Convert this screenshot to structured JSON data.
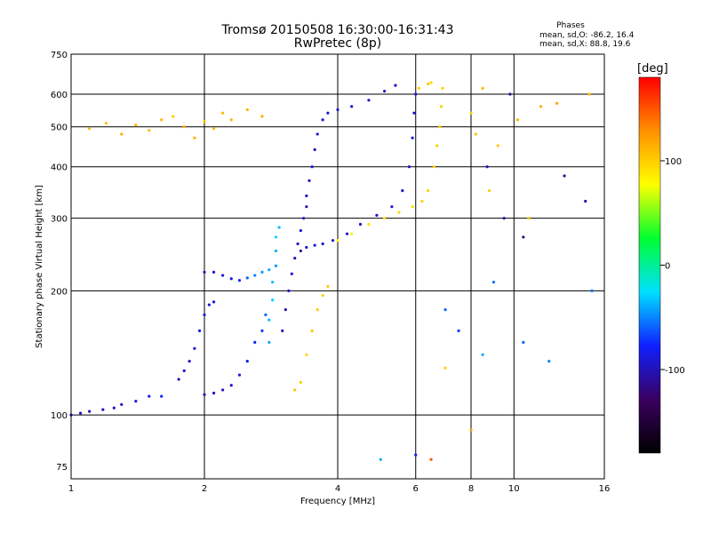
{
  "title": "Tromsø 20150508 16:30:00-16:31:43",
  "subtitle": "RwPretec (8p)",
  "phases": {
    "title": "Phases",
    "o_line": "mean, sd,O: -86.2, 16.4",
    "x_line": "mean, sd,X:  88.8, 19.6"
  },
  "colorbar": {
    "unit": "[deg]",
    "tick_labels": [
      "100",
      "0",
      "-100"
    ],
    "ticks": [
      100,
      0,
      -100
    ],
    "range": [
      -180,
      180
    ],
    "colors": [
      "#000000",
      "#3a0060",
      "#1020ff",
      "#00e0ff",
      "#00ff30",
      "#ffff00",
      "#ff9000",
      "#ff0000"
    ]
  },
  "chart_data": {
    "type": "scatter",
    "xlabel": "Frequency [MHz]",
    "ylabel": "Stationary phase Virtual Height [km]",
    "x_scale": "log",
    "y_scale": "log",
    "xlim": [
      1,
      16
    ],
    "ylim": [
      70,
      750
    ],
    "x_ticks": [
      1,
      2,
      4,
      6,
      8,
      10,
      16
    ],
    "x_tick_labels": [
      "1",
      "2",
      "4",
      "6",
      "8",
      "10",
      "16"
    ],
    "y_ticks": [
      75,
      100,
      200,
      300,
      400,
      500,
      600,
      750
    ],
    "y_tick_labels": [
      "75",
      "100",
      "200",
      "300",
      "400",
      "500",
      "600",
      "750"
    ],
    "grid": "on",
    "series": [
      {
        "color_by": "phase_deg",
        "points": [
          [
            1.0,
            100,
            -95
          ],
          [
            1.05,
            101,
            -100
          ],
          [
            1.1,
            102,
            -98
          ],
          [
            1.18,
            103,
            -92
          ],
          [
            1.25,
            104,
            -100
          ],
          [
            1.3,
            106,
            -95
          ],
          [
            1.4,
            108,
            -90
          ],
          [
            1.5,
            111,
            -85
          ],
          [
            1.6,
            111,
            -80
          ],
          [
            1.75,
            122,
            -100
          ],
          [
            1.8,
            128,
            -95
          ],
          [
            1.85,
            135,
            -92
          ],
          [
            1.9,
            145,
            -90
          ],
          [
            1.95,
            160,
            -88
          ],
          [
            2.0,
            175,
            -85
          ],
          [
            2.05,
            185,
            -90
          ],
          [
            2.1,
            188,
            -92
          ],
          [
            2.0,
            112,
            -100
          ],
          [
            2.1,
            113,
            -98
          ],
          [
            2.2,
            115,
            -95
          ],
          [
            2.3,
            118,
            -92
          ],
          [
            2.4,
            125,
            -90
          ],
          [
            2.5,
            135,
            -85
          ],
          [
            2.6,
            150,
            -80
          ],
          [
            2.7,
            160,
            -70
          ],
          [
            2.75,
            175,
            -60
          ],
          [
            2.0,
            222,
            -95
          ],
          [
            2.1,
            222,
            -92
          ],
          [
            2.2,
            218,
            -90
          ],
          [
            2.3,
            214,
            -85
          ],
          [
            2.4,
            212,
            -75
          ],
          [
            2.5,
            215,
            -60
          ],
          [
            2.6,
            218,
            -50
          ],
          [
            2.7,
            222,
            -45
          ],
          [
            2.8,
            225,
            -40
          ],
          [
            2.8,
            150,
            -40
          ],
          [
            2.8,
            170,
            -35
          ],
          [
            2.85,
            190,
            -30
          ],
          [
            2.85,
            210,
            -35
          ],
          [
            2.9,
            230,
            -45
          ],
          [
            2.9,
            250,
            -40
          ],
          [
            2.9,
            270,
            -30
          ],
          [
            2.95,
            285,
            -35
          ],
          [
            3.0,
            160,
            -95
          ],
          [
            3.05,
            180,
            -100
          ],
          [
            3.1,
            200,
            -90
          ],
          [
            3.15,
            220,
            -95
          ],
          [
            3.2,
            240,
            -100
          ],
          [
            3.25,
            260,
            -95
          ],
          [
            3.3,
            280,
            -90
          ],
          [
            3.35,
            300,
            -95
          ],
          [
            3.4,
            320,
            -100
          ],
          [
            3.4,
            340,
            -92
          ],
          [
            3.45,
            370,
            -95
          ],
          [
            3.5,
            400,
            -90
          ],
          [
            3.55,
            440,
            -95
          ],
          [
            3.6,
            480,
            -92
          ],
          [
            3.7,
            520,
            -95
          ],
          [
            3.8,
            540,
            -90
          ],
          [
            4.0,
            550,
            -95
          ],
          [
            4.3,
            560,
            -92
          ],
          [
            4.7,
            580,
            -95
          ],
          [
            5.1,
            610,
            -90
          ],
          [
            5.4,
            630,
            -95
          ],
          [
            3.3,
            250,
            -100
          ],
          [
            3.4,
            255,
            -95
          ],
          [
            3.55,
            258,
            -90
          ],
          [
            3.7,
            260,
            -95
          ],
          [
            3.9,
            265,
            -92
          ],
          [
            4.2,
            275,
            -90
          ],
          [
            4.5,
            290,
            -95
          ],
          [
            4.9,
            305,
            -92
          ],
          [
            5.3,
            320,
            -95
          ],
          [
            5.6,
            350,
            -92
          ],
          [
            5.8,
            400,
            -95
          ],
          [
            5.9,
            470,
            -90
          ],
          [
            5.95,
            540,
            -92
          ],
          [
            6.0,
            600,
            -95
          ],
          [
            3.2,
            115,
            105
          ],
          [
            3.3,
            120,
            100
          ],
          [
            3.4,
            140,
            98
          ],
          [
            3.5,
            160,
            102
          ],
          [
            3.6,
            180,
            100
          ],
          [
            3.7,
            195,
            98
          ],
          [
            3.8,
            205,
            102
          ],
          [
            4.0,
            265,
            80
          ],
          [
            4.3,
            275,
            85
          ],
          [
            4.7,
            290,
            90
          ],
          [
            5.1,
            300,
            92
          ],
          [
            5.5,
            310,
            95
          ],
          [
            5.9,
            320,
            95
          ],
          [
            6.2,
            330,
            98
          ],
          [
            6.4,
            350,
            100
          ],
          [
            6.6,
            400,
            98
          ],
          [
            6.7,
            450,
            100
          ],
          [
            6.8,
            500,
            102
          ],
          [
            6.85,
            560,
            100
          ],
          [
            6.9,
            620,
            98
          ],
          [
            6.1,
            620,
            100
          ],
          [
            6.4,
            635,
            105
          ],
          [
            6.5,
            640,
            95
          ],
          [
            1.1,
            495,
            110
          ],
          [
            1.2,
            510,
            105
          ],
          [
            1.3,
            480,
            115
          ],
          [
            1.4,
            505,
            112
          ],
          [
            1.5,
            490,
            108
          ],
          [
            1.6,
            520,
            110
          ],
          [
            1.7,
            530,
            100
          ],
          [
            1.8,
            500,
            115
          ],
          [
            1.9,
            470,
            112
          ],
          [
            2.0,
            515,
            105
          ],
          [
            2.1,
            495,
            110
          ],
          [
            2.2,
            540,
            108
          ],
          [
            2.3,
            520,
            112
          ],
          [
            2.5,
            550,
            110
          ],
          [
            2.7,
            530,
            115
          ],
          [
            8.0,
            540,
            100
          ],
          [
            8.2,
            480,
            105
          ],
          [
            8.5,
            620,
            110
          ],
          [
            8.8,
            350,
            100
          ],
          [
            9.2,
            450,
            105
          ],
          [
            10.2,
            520,
            110
          ],
          [
            10.8,
            300,
            105
          ],
          [
            11.5,
            560,
            115
          ],
          [
            12.5,
            570,
            120
          ],
          [
            14.8,
            600,
            110
          ],
          [
            7.0,
            180,
            -60
          ],
          [
            7.5,
            160,
            -70
          ],
          [
            8.5,
            140,
            -40
          ],
          [
            9.0,
            210,
            -55
          ],
          [
            10.5,
            150,
            -60
          ],
          [
            12.0,
            135,
            -50
          ],
          [
            15.0,
            200,
            -55
          ],
          [
            8.7,
            400,
            -100
          ],
          [
            9.5,
            300,
            -110
          ],
          [
            10.5,
            270,
            -120
          ],
          [
            13.0,
            380,
            -105
          ],
          [
            14.5,
            330,
            -100
          ],
          [
            9.8,
            600,
            -110
          ],
          [
            6.5,
            78,
            150
          ],
          [
            6.0,
            80,
            -80
          ],
          [
            5.0,
            78,
            -40
          ],
          [
            7.0,
            130,
            100
          ],
          [
            8.0,
            92,
            120
          ]
        ]
      }
    ]
  }
}
